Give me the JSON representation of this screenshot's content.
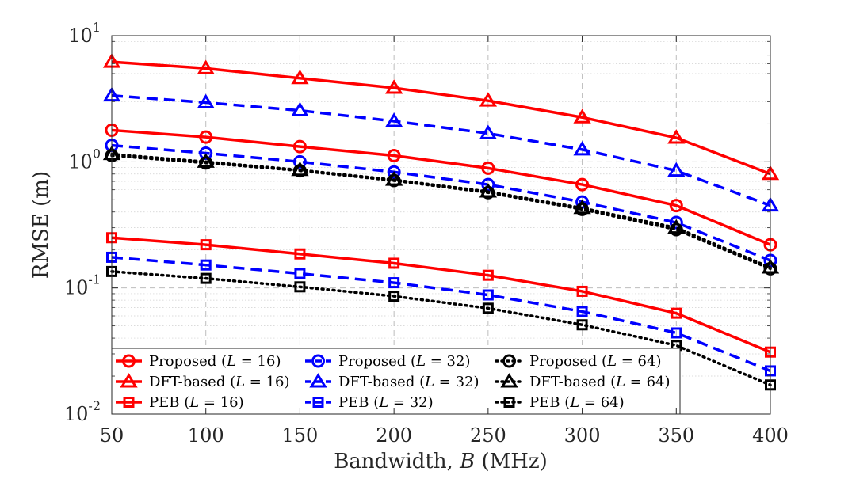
{
  "chart_data": {
    "type": "line",
    "xlabel": "Bandwidth, B (MHz)",
    "ylabel": "RMSE (m)",
    "yscale": "log",
    "xlim": [
      50,
      400
    ],
    "ylim": [
      0.01,
      10
    ],
    "x": [
      50,
      100,
      150,
      200,
      250,
      300,
      350,
      400
    ],
    "x_ticks": [
      "50",
      "100",
      "150",
      "200",
      "250",
      "300",
      "350",
      "400"
    ],
    "y_ticks": [
      {
        "base": "10",
        "exp": "-2",
        "value": 0.01
      },
      {
        "base": "10",
        "exp": "-1",
        "value": 0.1
      },
      {
        "base": "10",
        "exp": "0",
        "value": 1
      },
      {
        "base": "10",
        "exp": "1",
        "value": 10
      }
    ],
    "grid": true,
    "legend_position": "bottom-left",
    "series": [
      {
        "name": "Proposed (L = 16)",
        "color": "#ff0000",
        "dash": "solid",
        "marker": "circle",
        "values": [
          1.78,
          1.57,
          1.32,
          1.12,
          0.89,
          0.66,
          0.45,
          0.22
        ]
      },
      {
        "name": "DFT-based (L = 16)",
        "color": "#ff0000",
        "dash": "solid",
        "marker": "triangle",
        "values": [
          6.2,
          5.5,
          4.6,
          3.85,
          3.05,
          2.25,
          1.55,
          0.8
        ]
      },
      {
        "name": "PEB (L = 16)",
        "color": "#ff0000",
        "dash": "solid",
        "marker": "square",
        "values": [
          0.25,
          0.22,
          0.186,
          0.157,
          0.126,
          0.094,
          0.063,
          0.031
        ]
      },
      {
        "name": "Proposed (L = 32)",
        "color": "#0000ff",
        "dash": "dashed",
        "marker": "circle",
        "values": [
          1.35,
          1.17,
          1.0,
          0.83,
          0.66,
          0.48,
          0.33,
          0.165
        ]
      },
      {
        "name": "DFT-based (L = 32)",
        "color": "#0000ff",
        "dash": "dashed",
        "marker": "triangle",
        "values": [
          3.35,
          2.95,
          2.55,
          2.1,
          1.68,
          1.25,
          0.85,
          0.45
        ]
      },
      {
        "name": "PEB (L = 32)",
        "color": "#0000ff",
        "dash": "dashed",
        "marker": "square",
        "values": [
          0.175,
          0.152,
          0.13,
          0.11,
          0.088,
          0.065,
          0.044,
          0.022
        ]
      },
      {
        "name": "Proposed (L = 64)",
        "color": "#000000",
        "dash": "dotted",
        "marker": "circle",
        "values": [
          1.12,
          0.98,
          0.85,
          0.71,
          0.57,
          0.42,
          0.29,
          0.142
        ]
      },
      {
        "name": "DFT-based (L = 64)",
        "color": "#000000",
        "dash": "dotted",
        "marker": "triangle",
        "values": [
          1.15,
          1.0,
          0.86,
          0.72,
          0.58,
          0.43,
          0.3,
          0.145
        ]
      },
      {
        "name": "PEB (L = 64)",
        "color": "#000000",
        "dash": "dotted",
        "marker": "square",
        "values": [
          0.135,
          0.119,
          0.102,
          0.086,
          0.069,
          0.051,
          0.035,
          0.017
        ]
      }
    ],
    "legend": [
      {
        "prefix": "Proposed (",
        "var": "L",
        "suffix": " = 16)",
        "series": 0
      },
      {
        "prefix": "Proposed (",
        "var": "L",
        "suffix": " = 32)",
        "series": 3
      },
      {
        "prefix": "Proposed (",
        "var": "L",
        "suffix": " = 64)",
        "series": 6
      },
      {
        "prefix": "DFT-based (",
        "var": "L",
        "suffix": " = 16)",
        "series": 1
      },
      {
        "prefix": "DFT-based (",
        "var": "L",
        "suffix": " = 32)",
        "series": 4
      },
      {
        "prefix": "DFT-based (",
        "var": "L",
        "suffix": " = 64)",
        "series": 7
      },
      {
        "prefix": "PEB (",
        "var": "L",
        "suffix": " = 16)",
        "series": 2
      },
      {
        "prefix": "PEB (",
        "var": "L",
        "suffix": " = 32)",
        "series": 5
      },
      {
        "prefix": "PEB (",
        "var": "L",
        "suffix": " = 64)",
        "series": 8
      }
    ],
    "xlabel_parts": {
      "prefix": "Bandwidth, ",
      "var": "B",
      "suffix": " (MHz)"
    }
  }
}
